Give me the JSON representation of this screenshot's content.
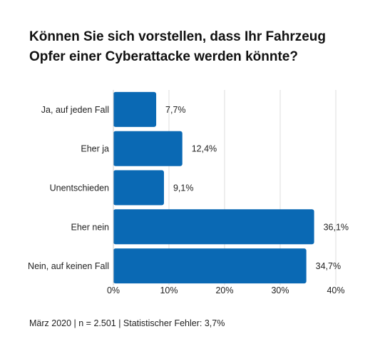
{
  "title_lines": [
    "Können Sie sich vorstellen, dass Ihr Fahrzeug",
    "Opfer einer Cyberattacke werden könnte?"
  ],
  "footer": "März 2020 | n = 2.501 | Statistischer Fehler: 3,7%",
  "colors": {
    "bar": "#0a69b4",
    "grid": "#dddddd",
    "text": "#222222"
  },
  "chart_data": {
    "type": "bar",
    "orientation": "horizontal",
    "title": "Können Sie sich vorstellen, dass Ihr Fahrzeug Opfer einer Cyberattacke werden könnte?",
    "categories": [
      "Ja, auf jeden Fall",
      "Eher ja",
      "Unentschieden",
      "Eher nein",
      "Nein, auf keinen Fall"
    ],
    "values": [
      7.7,
      12.4,
      9.1,
      36.1,
      34.7
    ],
    "value_labels": [
      "7,7%",
      "12,4%",
      "9,1%",
      "36,1%",
      "34,7%"
    ],
    "xlim": [
      0,
      40
    ],
    "xticks": [
      0,
      10,
      20,
      30,
      40
    ],
    "xtick_labels": [
      "0%",
      "10%",
      "20%",
      "30%",
      "40%"
    ],
    "grid": true,
    "legend": "none"
  }
}
